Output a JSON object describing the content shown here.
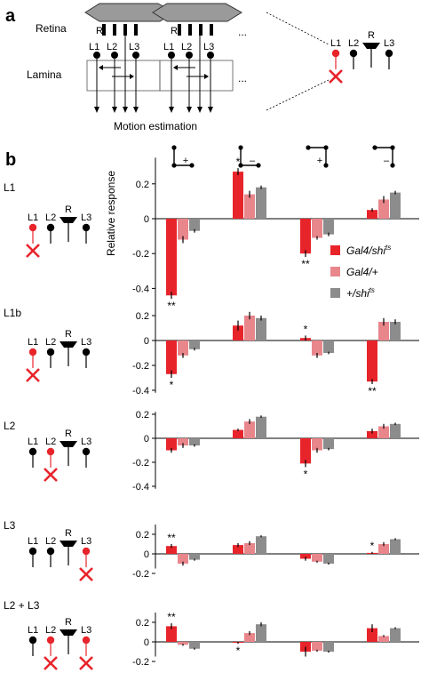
{
  "panel_a": {
    "letter": "a",
    "retina_label": "Retina",
    "lamina_label": "Lamina",
    "motion_label": "Motion estimation",
    "ellipsis": "...",
    "r_label": "R",
    "l1_label": "L1",
    "l2_label": "L2",
    "l3_label": "L3"
  },
  "panel_b": {
    "letter": "b",
    "ylabel": "Relative response",
    "stimulus_signs": [
      "+",
      "–",
      "+",
      "–"
    ],
    "legend": [
      {
        "name": "Gal4/shi",
        "sup": "ts",
        "color": "#e8242b"
      },
      {
        "name": "Gal4/+",
        "sup": "",
        "color": "#e8868b"
      },
      {
        "name": "+/shi",
        "sup": "ts",
        "color": "#8c8c8c"
      }
    ]
  },
  "chart_data": [
    {
      "type": "bar",
      "row_label": "L1",
      "silenced": [
        "L1"
      ],
      "ylim": [
        -0.5,
        0.35
      ],
      "yticks": [
        -0.4,
        -0.2,
        0,
        0.2
      ],
      "yticklabels": [
        "-0.4",
        "-0.2",
        "0",
        "0.2"
      ],
      "series": [
        {
          "name": "Gal4/shi",
          "values": [
            -0.44,
            0.27,
            -0.2,
            0.05
          ],
          "errors": [
            0.02,
            0.02,
            0.02,
            0.01
          ]
        },
        {
          "name": "Gal4/+",
          "values": [
            -0.12,
            0.14,
            -0.11,
            0.11
          ],
          "errors": [
            0.02,
            0.02,
            0.01,
            0.02
          ]
        },
        {
          "name": "+/shi",
          "values": [
            -0.07,
            0.18,
            -0.09,
            0.15
          ],
          "errors": [
            0.01,
            0.01,
            0.01,
            0.01
          ]
        }
      ],
      "stars": [
        "**",
        "*",
        "**",
        ""
      ],
      "star_pos": [
        "below",
        "above",
        "below",
        ""
      ]
    },
    {
      "type": "bar",
      "row_label": "L1b",
      "silenced": [
        "L1"
      ],
      "ylim": [
        -0.42,
        0.3
      ],
      "yticks": [
        -0.4,
        -0.2,
        0,
        0.2
      ],
      "yticklabels": [
        "-0.4",
        "-0.2",
        "0",
        "0.2"
      ],
      "series": [
        {
          "name": "Gal4/shi",
          "values": [
            -0.27,
            0.12,
            0.02,
            -0.33
          ],
          "errors": [
            0.03,
            0.04,
            0.02,
            0.02
          ]
        },
        {
          "name": "Gal4/+",
          "values": [
            -0.12,
            0.2,
            -0.12,
            0.15
          ],
          "errors": [
            0.02,
            0.03,
            0.02,
            0.03
          ]
        },
        {
          "name": "+/shi",
          "values": [
            -0.07,
            0.18,
            -0.1,
            0.15
          ],
          "errors": [
            0.01,
            0.02,
            0.01,
            0.02
          ]
        }
      ],
      "stars": [
        "*",
        "",
        "*",
        "**"
      ],
      "star_pos": [
        "below",
        "",
        "above",
        "below"
      ]
    },
    {
      "type": "bar",
      "row_label": "L2",
      "silenced": [
        "L2"
      ],
      "ylim": [
        -0.42,
        0.22
      ],
      "yticks": [
        -0.4,
        -0.2,
        0,
        0.2
      ],
      "yticklabels": [
        "-0.4",
        "-0.2",
        "0",
        "0.2"
      ],
      "series": [
        {
          "name": "Gal4/shi",
          "values": [
            -0.1,
            0.07,
            -0.21,
            0.06
          ],
          "errors": [
            0.02,
            0.01,
            0.03,
            0.02
          ]
        },
        {
          "name": "Gal4/+",
          "values": [
            -0.06,
            0.14,
            -0.1,
            0.1
          ],
          "errors": [
            0.02,
            0.02,
            0.02,
            0.02
          ]
        },
        {
          "name": "+/shi",
          "values": [
            -0.06,
            0.18,
            -0.09,
            0.12
          ],
          "errors": [
            0.01,
            0.01,
            0.01,
            0.01
          ]
        }
      ],
      "stars": [
        "",
        "",
        "*",
        ""
      ],
      "star_pos": [
        "",
        "",
        "below",
        ""
      ]
    },
    {
      "type": "bar",
      "row_label": "L3",
      "silenced": [
        "L3"
      ],
      "ylim": [
        -0.15,
        0.3
      ],
      "yticks": [
        -0.2,
        0,
        0.2
      ],
      "yticklabels": [
        "-0.2",
        "0",
        "0.2"
      ],
      "series": [
        {
          "name": "Gal4/shi",
          "values": [
            0.08,
            0.09,
            -0.05,
            0.01
          ],
          "errors": [
            0.02,
            0.02,
            0.02,
            0.01
          ]
        },
        {
          "name": "Gal4/+",
          "values": [
            -0.1,
            0.11,
            -0.08,
            0.1
          ],
          "errors": [
            0.02,
            0.02,
            0.01,
            0.02
          ]
        },
        {
          "name": "+/shi",
          "values": [
            -0.06,
            0.18,
            -0.1,
            0.15
          ],
          "errors": [
            0.01,
            0.01,
            0.01,
            0.01
          ]
        }
      ],
      "stars": [
        "**",
        "",
        "",
        "*"
      ],
      "star_pos": [
        "above",
        "",
        "",
        "above"
      ]
    },
    {
      "type": "bar",
      "row_label": "L2 + L3",
      "silenced": [
        "L2",
        "L3"
      ],
      "ylim": [
        -0.15,
        0.3
      ],
      "yticks": [
        -0.2,
        0,
        0.2
      ],
      "yticklabels": [
        "-0.2",
        "0",
        "0.2"
      ],
      "series": [
        {
          "name": "Gal4/shi",
          "values": [
            0.16,
            -0.01,
            -0.1,
            0.14
          ],
          "errors": [
            0.03,
            0.01,
            0.05,
            0.04
          ]
        },
        {
          "name": "Gal4/+",
          "values": [
            -0.03,
            0.09,
            -0.09,
            0.06
          ],
          "errors": [
            0.01,
            0.02,
            0.01,
            0.01
          ]
        },
        {
          "name": "+/shi",
          "values": [
            -0.07,
            0.18,
            -0.1,
            0.14
          ],
          "errors": [
            0.01,
            0.02,
            0.01,
            0.01
          ]
        }
      ],
      "stars": [
        "**",
        "*",
        "",
        ""
      ],
      "star_pos": [
        "above",
        "below",
        "",
        ""
      ]
    }
  ]
}
